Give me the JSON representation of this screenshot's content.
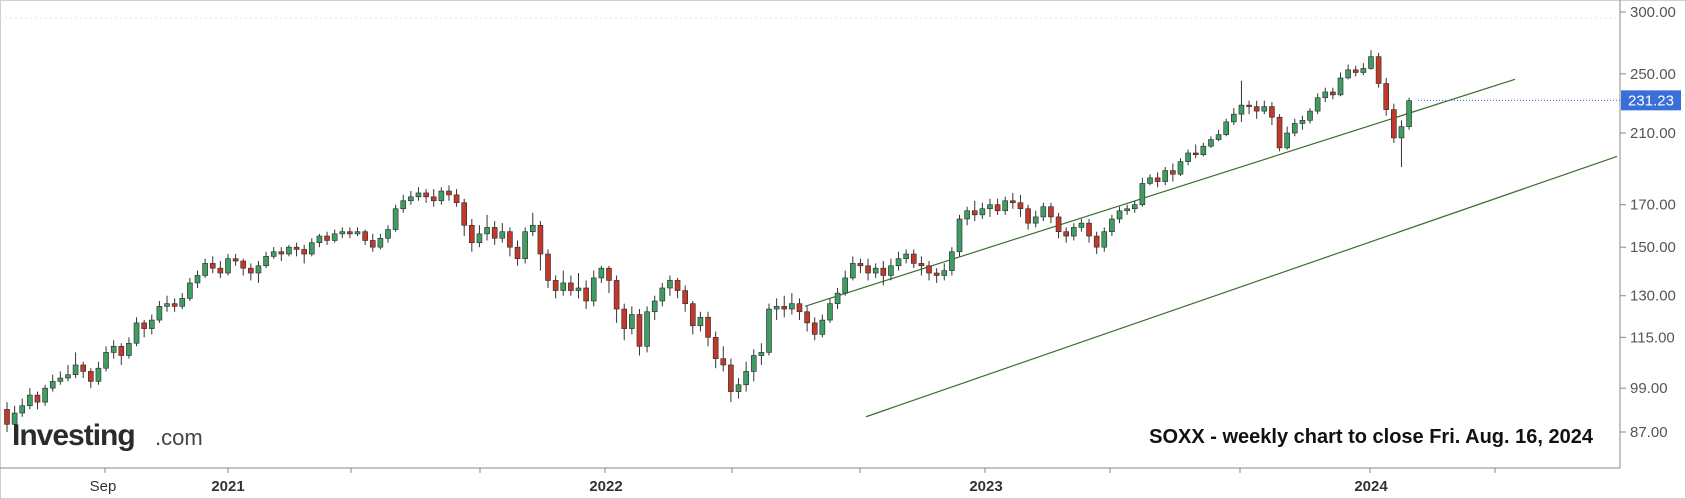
{
  "chart_data": {
    "type": "candlestick",
    "ticker": "SOXX",
    "caption": "SOXX - weekly chart to close Fri. Aug. 16, 2024",
    "logo": {
      "main": "Investing",
      "suffix": ".com"
    },
    "y_axis": {
      "scale": "log",
      "ylim": [
        80,
        305
      ],
      "ticks": [
        {
          "value": 300,
          "label": "300.00"
        },
        {
          "value": 250,
          "label": "250.00"
        },
        {
          "value": 210,
          "label": "210.00"
        },
        {
          "value": 170,
          "label": "170.00"
        },
        {
          "value": 150,
          "label": "150.00"
        },
        {
          "value": 130,
          "label": "130.00"
        },
        {
          "value": 115,
          "label": "115.00"
        },
        {
          "value": 99,
          "label": "99.00"
        },
        {
          "value": 87,
          "label": "87.00"
        }
      ],
      "last_price": {
        "value": 231.23,
        "label": "231.23"
      }
    },
    "x_axis": {
      "labels": [
        {
          "text": "Sep",
          "bold": false
        },
        {
          "text": "2021",
          "bold": true
        },
        {
          "text": "2022",
          "bold": true
        },
        {
          "text": "2023",
          "bold": true
        },
        {
          "text": "2024",
          "bold": true
        }
      ]
    },
    "trend_channel": {
      "upper": {
        "start": {
          "date": "2022-10",
          "price": 126
        },
        "end": {
          "date": "2024-06",
          "price": 246
        }
      },
      "lower": {
        "start": {
          "date": "2022-10",
          "price": 91
        },
        "end": {
          "date": "2024-08",
          "price": 196
        }
      }
    },
    "colors": {
      "up": "#3f9c62",
      "down": "#c0392b",
      "wick": "#333333",
      "channel": "#3b6e2a",
      "price_tag": "#3a6fd8",
      "axis": "#888888"
    },
    "candles": [
      [
        93,
        89,
        95,
        87
      ],
      [
        89,
        92,
        94,
        88
      ],
      [
        92,
        94,
        96,
        91
      ],
      [
        94,
        97,
        99,
        93
      ],
      [
        97,
        95,
        98,
        93
      ],
      [
        95,
        99,
        100,
        94
      ],
      [
        99,
        101,
        103,
        98
      ],
      [
        101,
        102,
        104,
        100
      ],
      [
        102,
        103,
        106,
        101
      ],
      [
        103,
        106,
        110,
        102
      ],
      [
        106,
        104,
        107,
        102
      ],
      [
        104,
        101,
        105,
        99
      ],
      [
        101,
        105,
        107,
        100
      ],
      [
        105,
        110,
        112,
        104
      ],
      [
        110,
        112,
        114,
        108
      ],
      [
        112,
        109,
        113,
        106
      ],
      [
        109,
        113,
        115,
        108
      ],
      [
        113,
        120,
        122,
        112
      ],
      [
        120,
        118,
        121,
        115
      ],
      [
        118,
        121,
        123,
        116
      ],
      [
        121,
        126,
        128,
        120
      ],
      [
        126,
        127,
        130,
        124
      ],
      [
        127,
        126,
        129,
        124
      ],
      [
        126,
        129,
        131,
        125
      ],
      [
        129,
        135,
        137,
        128
      ],
      [
        135,
        138,
        140,
        133
      ],
      [
        138,
        143,
        145,
        137
      ],
      [
        143,
        141,
        146,
        139
      ],
      [
        141,
        139,
        144,
        137
      ],
      [
        139,
        145,
        147,
        138
      ],
      [
        145,
        144,
        147,
        142
      ],
      [
        144,
        141,
        145,
        138
      ],
      [
        141,
        139,
        143,
        136
      ],
      [
        139,
        142,
        144,
        135
      ],
      [
        142,
        146,
        148,
        141
      ],
      [
        146,
        148,
        150,
        145
      ],
      [
        148,
        147,
        150,
        144
      ],
      [
        147,
        150,
        151,
        146
      ],
      [
        150,
        149,
        152,
        146
      ],
      [
        149,
        147,
        151,
        143
      ],
      [
        147,
        152,
        154,
        146
      ],
      [
        152,
        155,
        156,
        150
      ],
      [
        155,
        153,
        157,
        151
      ],
      [
        153,
        156,
        158,
        152
      ],
      [
        156,
        157,
        159,
        154
      ],
      [
        157,
        156,
        159,
        154
      ],
      [
        156,
        157,
        159,
        155
      ],
      [
        157,
        153,
        158,
        151
      ],
      [
        153,
        150,
        156,
        148
      ],
      [
        150,
        154,
        156,
        149
      ],
      [
        154,
        158,
        160,
        152
      ],
      [
        158,
        168,
        170,
        157
      ],
      [
        168,
        172,
        175,
        166
      ],
      [
        172,
        174,
        177,
        170
      ],
      [
        174,
        176,
        179,
        172
      ],
      [
        176,
        174,
        178,
        171
      ],
      [
        174,
        172,
        178,
        169
      ],
      [
        172,
        177,
        179,
        170
      ],
      [
        177,
        175,
        180,
        172
      ],
      [
        175,
        171,
        178,
        169
      ],
      [
        171,
        160,
        173,
        155
      ],
      [
        160,
        152,
        163,
        148
      ],
      [
        152,
        156,
        160,
        150
      ],
      [
        156,
        159,
        165,
        153
      ],
      [
        159,
        154,
        162,
        151
      ],
      [
        154,
        157,
        161,
        152
      ],
      [
        157,
        150,
        159,
        146
      ],
      [
        150,
        145,
        153,
        142
      ],
      [
        145,
        157,
        159,
        143
      ],
      [
        157,
        160,
        166,
        155
      ],
      [
        160,
        147,
        162,
        140
      ],
      [
        147,
        136,
        149,
        133
      ],
      [
        136,
        132,
        138,
        129
      ],
      [
        132,
        135,
        140,
        130
      ],
      [
        135,
        132,
        138,
        130
      ],
      [
        132,
        133,
        139,
        129
      ],
      [
        133,
        128,
        136,
        125
      ],
      [
        128,
        137,
        140,
        126
      ],
      [
        137,
        141,
        142,
        135
      ],
      [
        141,
        136,
        142,
        131
      ],
      [
        136,
        125,
        138,
        120
      ],
      [
        125,
        118,
        127,
        114
      ],
      [
        118,
        123,
        126,
        116
      ],
      [
        123,
        112,
        125,
        109
      ],
      [
        112,
        124,
        126,
        110
      ],
      [
        124,
        128,
        130,
        121
      ],
      [
        128,
        133,
        135,
        126
      ],
      [
        133,
        136,
        138,
        130
      ],
      [
        136,
        132,
        137,
        129
      ],
      [
        132,
        127,
        134,
        124
      ],
      [
        127,
        119,
        128,
        116
      ],
      [
        119,
        122,
        124,
        117
      ],
      [
        122,
        115,
        124,
        112
      ],
      [
        115,
        108,
        117,
        105
      ],
      [
        108,
        106,
        112,
        104
      ],
      [
        106,
        98,
        108,
        95
      ],
      [
        98,
        100,
        102,
        96
      ],
      [
        100,
        104,
        107,
        98
      ],
      [
        104,
        109,
        111,
        101
      ],
      [
        109,
        110,
        113,
        106
      ],
      [
        110,
        125,
        127,
        109
      ],
      [
        125,
        126,
        129,
        121
      ],
      [
        126,
        125,
        130,
        122
      ],
      [
        125,
        127,
        131,
        123
      ],
      [
        127,
        124,
        129,
        121
      ],
      [
        124,
        120,
        126,
        117
      ],
      [
        120,
        116,
        122,
        114
      ],
      [
        116,
        121,
        123,
        115
      ],
      [
        121,
        127,
        129,
        120
      ],
      [
        127,
        131,
        133,
        125
      ],
      [
        131,
        137,
        140,
        130
      ],
      [
        137,
        143,
        146,
        136
      ],
      [
        143,
        142,
        145,
        139
      ],
      [
        142,
        139,
        145,
        136
      ],
      [
        139,
        141,
        143,
        137
      ],
      [
        141,
        138,
        144,
        134
      ],
      [
        138,
        142,
        145,
        136
      ],
      [
        142,
        145,
        148,
        140
      ],
      [
        145,
        147,
        149,
        143
      ],
      [
        147,
        143,
        149,
        141
      ],
      [
        143,
        142,
        146,
        138
      ],
      [
        142,
        139,
        144,
        136
      ],
      [
        139,
        138,
        141,
        135
      ],
      [
        138,
        140,
        143,
        136
      ],
      [
        140,
        148,
        150,
        138
      ],
      [
        148,
        163,
        165,
        146
      ],
      [
        163,
        167,
        169,
        160
      ],
      [
        167,
        165,
        172,
        162
      ],
      [
        165,
        168,
        171,
        163
      ],
      [
        168,
        170,
        173,
        164
      ],
      [
        170,
        167,
        173,
        165
      ],
      [
        167,
        172,
        174,
        165
      ],
      [
        172,
        171,
        176,
        168
      ],
      [
        171,
        168,
        175,
        164
      ],
      [
        168,
        161,
        170,
        158
      ],
      [
        161,
        164,
        167,
        159
      ],
      [
        164,
        169,
        171,
        162
      ],
      [
        169,
        164,
        171,
        161
      ],
      [
        164,
        157,
        166,
        154
      ],
      [
        157,
        155,
        159,
        152
      ],
      [
        155,
        159,
        161,
        153
      ],
      [
        159,
        161,
        163,
        157
      ],
      [
        161,
        155,
        163,
        152
      ],
      [
        155,
        150,
        157,
        147
      ],
      [
        150,
        157,
        159,
        148
      ],
      [
        157,
        163,
        165,
        155
      ],
      [
        163,
        167,
        169,
        161
      ],
      [
        167,
        168,
        170,
        165
      ],
      [
        168,
        170,
        172,
        166
      ],
      [
        170,
        181,
        184,
        169
      ],
      [
        181,
        184,
        186,
        180
      ],
      [
        184,
        182,
        187,
        179
      ],
      [
        182,
        188,
        190,
        180
      ],
      [
        188,
        186,
        192,
        182
      ],
      [
        186,
        193,
        195,
        185
      ],
      [
        193,
        198,
        200,
        191
      ],
      [
        198,
        197,
        203,
        195
      ],
      [
        197,
        202,
        204,
        196
      ],
      [
        202,
        206,
        208,
        201
      ],
      [
        206,
        209,
        212,
        205
      ],
      [
        209,
        217,
        219,
        208
      ],
      [
        217,
        222,
        226,
        215
      ],
      [
        222,
        228,
        245,
        217
      ],
      [
        228,
        227,
        231,
        222
      ],
      [
        227,
        224,
        231,
        219
      ],
      [
        224,
        227,
        231,
        222
      ],
      [
        227,
        220,
        230,
        215
      ],
      [
        220,
        201,
        222,
        199
      ],
      [
        201,
        210,
        214,
        200
      ],
      [
        210,
        216,
        219,
        208
      ],
      [
        216,
        218,
        221,
        212
      ],
      [
        218,
        224,
        226,
        216
      ],
      [
        224,
        233,
        236,
        222
      ],
      [
        233,
        237,
        240,
        230
      ],
      [
        237,
        235,
        240,
        232
      ],
      [
        235,
        247,
        251,
        234
      ],
      [
        247,
        253,
        257,
        246
      ],
      [
        253,
        251,
        256,
        248
      ],
      [
        251,
        254,
        258,
        249
      ],
      [
        254,
        263,
        268,
        253
      ],
      [
        263,
        243,
        266,
        240
      ],
      [
        243,
        225,
        247,
        221
      ],
      [
        225,
        207,
        229,
        204
      ],
      [
        207,
        214,
        218,
        190
      ],
      [
        214,
        231,
        233,
        212
      ]
    ]
  }
}
